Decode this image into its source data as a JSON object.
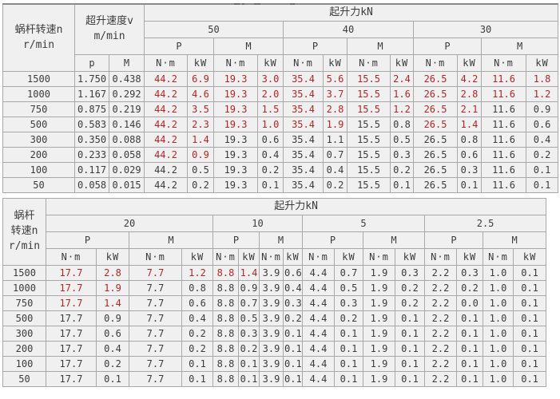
{
  "palette": {
    "page_bg": "#ffffff",
    "cell_bg": "#f0f0f0",
    "border": "#a8a8a8",
    "outer_border": "#7f7f7f",
    "text": "#3b3b3b",
    "highlight_red": "#b42626"
  },
  "t1": {
    "header": {
      "col1": [
        "蜗杆转速n",
        "r/min"
      ],
      "speed": [
        "超升速度v",
        "m/min"
      ],
      "speed_sub": [
        "p",
        "M"
      ],
      "force": "起升力kN",
      "loads": [
        "50",
        "40",
        "30"
      ],
      "pm": [
        "P",
        "M"
      ],
      "units": [
        "N·m",
        "kW"
      ]
    },
    "rows": [
      {
        "n": "1500",
        "speed": [
          "1.750",
          "0.438"
        ],
        "values": [
          "44.2",
          "6.9",
          "19.3",
          "3.0",
          "35.4",
          "5.6",
          "15.5",
          "2.4",
          "26.5",
          "4.2",
          "11.6",
          "1.8"
        ],
        "red": [
          1,
          1,
          1,
          1,
          1,
          1,
          1,
          1,
          1,
          1,
          1,
          1
        ]
      },
      {
        "n": "1000",
        "speed": [
          "1.167",
          "0.292"
        ],
        "values": [
          "44.2",
          "4.6",
          "19.3",
          "2.0",
          "35.4",
          "3.7",
          "15.5",
          "1.6",
          "26.5",
          "2.8",
          "11.6",
          "1.2"
        ],
        "red": [
          1,
          1,
          1,
          1,
          1,
          1,
          1,
          1,
          1,
          1,
          1,
          1
        ]
      },
      {
        "n": "750",
        "speed": [
          "0.875",
          "0.219"
        ],
        "values": [
          "44.2",
          "3.5",
          "19.3",
          "1.5",
          "35.4",
          "2.8",
          "15.5",
          "1.2",
          "26.5",
          "2.1",
          "11.6",
          "0.9"
        ],
        "red": [
          1,
          1,
          1,
          1,
          1,
          1,
          1,
          1,
          1,
          1,
          0,
          0
        ]
      },
      {
        "n": "500",
        "speed": [
          "0.583",
          "0.146"
        ],
        "values": [
          "44.2",
          "2.3",
          "19.3",
          "1.0",
          "35.4",
          "1.9",
          "15.5",
          "0.8",
          "26.5",
          "1.4",
          "11.6",
          "0.6"
        ],
        "red": [
          1,
          1,
          1,
          1,
          1,
          1,
          0,
          0,
          1,
          1,
          0,
          0
        ]
      },
      {
        "n": "300",
        "speed": [
          "0.350",
          "0.088"
        ],
        "values": [
          "44.2",
          "1.4",
          "19.3",
          "0.6",
          "35.4",
          "1.1",
          "15.5",
          "0.5",
          "26.5",
          "0.8",
          "11.6",
          "0.4"
        ],
        "red": [
          1,
          1,
          0,
          0,
          0,
          0,
          0,
          0,
          0,
          0,
          0,
          0
        ]
      },
      {
        "n": "200",
        "speed": [
          "0.233",
          "0.058"
        ],
        "values": [
          "44.2",
          "0.9",
          "19.3",
          "0.4",
          "35.4",
          "0.7",
          "15.5",
          "0.3",
          "26.5",
          "0.6",
          "11.6",
          "0.2"
        ],
        "red": [
          1,
          1,
          0,
          0,
          0,
          0,
          0,
          0,
          0,
          0,
          0,
          0
        ]
      },
      {
        "n": "100",
        "speed": [
          "0.117",
          "0.029"
        ],
        "values": [
          "44.2",
          "0.5",
          "19.3",
          "0.2",
          "35.4",
          "0.4",
          "15.5",
          "0.2",
          "26.5",
          "0.3",
          "11.6",
          "0.1"
        ],
        "red": [
          0,
          0,
          0,
          0,
          0,
          0,
          0,
          0,
          0,
          0,
          0,
          0
        ]
      },
      {
        "n": "50",
        "speed": [
          "0.058",
          "0.015"
        ],
        "values": [
          "44.2",
          "0.2",
          "19.3",
          "0.1",
          "35.4",
          "0.2",
          "15.5",
          "0.1",
          "26.5",
          "0.1",
          "11.6",
          "0.1"
        ],
        "red": [
          0,
          0,
          0,
          0,
          0,
          0,
          0,
          0,
          0,
          0,
          0,
          0
        ]
      }
    ]
  },
  "t2": {
    "header": {
      "col1": [
        "蜗杆",
        "转速n",
        "r/min"
      ],
      "force": "起升力kN",
      "loads": [
        "20",
        "10",
        "5",
        "2.5"
      ],
      "pm": [
        "P",
        "M"
      ],
      "units": [
        "N·m",
        "kW"
      ]
    },
    "rows": [
      {
        "n": "1500",
        "values": [
          "17.7",
          "2.8",
          "7.7",
          "1.2",
          "8.8",
          "1.4",
          "3.9",
          "0.6",
          "4.4",
          "0.7",
          "1.9",
          "0.3",
          "2.2",
          "0.3",
          "1.0",
          "0.1"
        ],
        "red": [
          1,
          1,
          1,
          1,
          1,
          1,
          0,
          0,
          0,
          0,
          0,
          0,
          0,
          0,
          0,
          0
        ]
      },
      {
        "n": "1000",
        "values": [
          "17.7",
          "1.9",
          "7.7",
          "0.8",
          "8.8",
          "0.9",
          "3.9",
          "0.4",
          "4.4",
          "0.5",
          "1.9",
          "0.2",
          "2.2",
          "0.2",
          "1.0",
          "0.1"
        ],
        "red": [
          1,
          1,
          0,
          0,
          0,
          0,
          0,
          0,
          0,
          0,
          0,
          0,
          0,
          0,
          0,
          0
        ]
      },
      {
        "n": "750",
        "values": [
          "17.7",
          "1.4",
          "7.7",
          "0.6",
          "8.8",
          "0.7",
          "3.9",
          "0.3",
          "4.4",
          "0.3",
          "1.9",
          "0.2",
          "2.2",
          "0.0",
          "1.0",
          "0.1"
        ],
        "red": [
          1,
          1,
          0,
          0,
          0,
          0,
          0,
          0,
          0,
          0,
          0,
          0,
          0,
          0,
          0,
          0
        ]
      },
      {
        "n": "500",
        "values": [
          "17.7",
          "0.9",
          "7.7",
          "0.4",
          "8.8",
          "0.5",
          "3.9",
          "0.2",
          "4.4",
          "0.2",
          "1.9",
          "0.1",
          "2.2",
          "0.1",
          "1.0",
          "0.1"
        ],
        "red": [
          0,
          0,
          0,
          0,
          0,
          0,
          0,
          0,
          0,
          0,
          0,
          0,
          0,
          0,
          0,
          0
        ]
      },
      {
        "n": "300",
        "values": [
          "17.7",
          "0.6",
          "7.7",
          "0.2",
          "8.8",
          "0.3",
          "3.9",
          "0.1",
          "4.4",
          "0.1",
          "1.9",
          "0.1",
          "2.2",
          "0.1",
          "1.0",
          "0.1"
        ],
        "red": [
          0,
          0,
          0,
          0,
          0,
          0,
          0,
          0,
          0,
          0,
          0,
          0,
          0,
          0,
          0,
          0
        ]
      },
      {
        "n": "200",
        "values": [
          "17.7",
          "0.4",
          "7.7",
          "0.2",
          "8.8",
          "0.2",
          "3.9",
          "0.1",
          "4.4",
          "0.1",
          "1.9",
          "0.1",
          "2.2",
          "0.1",
          "1.0",
          "0.1"
        ],
        "red": [
          0,
          0,
          0,
          0,
          0,
          0,
          0,
          0,
          0,
          0,
          0,
          0,
          0,
          0,
          0,
          0
        ]
      },
      {
        "n": "100",
        "values": [
          "17.7",
          "0.2",
          "7.7",
          "0.1",
          "8.8",
          "0.1",
          "3.9",
          "0.1",
          "4.4",
          "0.1",
          "1.9",
          "0.1",
          "2.2",
          "0.1",
          "1.0",
          "0.1"
        ],
        "red": [
          0,
          0,
          0,
          0,
          0,
          0,
          0,
          0,
          0,
          0,
          0,
          0,
          0,
          0,
          0,
          0
        ]
      },
      {
        "n": "50",
        "values": [
          "17.7",
          "0.1",
          "7.7",
          "0.1",
          "8.8",
          "0.1",
          "3.9",
          "0.1",
          "4.4",
          "0.1",
          "1.9",
          "0.1",
          "2.2",
          "0.1",
          "1.0",
          "0.1"
        ],
        "red": [
          0,
          0,
          0,
          0,
          0,
          0,
          0,
          0,
          0,
          0,
          0,
          0,
          0,
          0,
          0,
          0
        ]
      }
    ]
  }
}
